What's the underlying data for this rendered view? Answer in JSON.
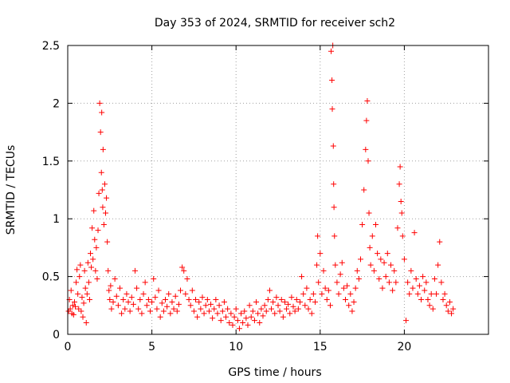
{
  "chart_data": {
    "type": "scatter",
    "title": "Day 353 of 2024, SRMTID for receiver sch2",
    "xlabel": "GPS time / hours",
    "ylabel": "SRMTID / TECUs",
    "xlim": [
      0,
      25
    ],
    "ylim": [
      0,
      2.5
    ],
    "xticks": [
      0,
      5,
      10,
      15,
      20
    ],
    "xtick_labels": [
      "0",
      "5",
      "10",
      "15",
      "20"
    ],
    "yticks": [
      0,
      0.5,
      1,
      1.5,
      2,
      2.5
    ],
    "ytick_labels": [
      "0",
      "0.5",
      "1",
      "1.5",
      "2",
      "2.5"
    ],
    "grid": true,
    "marker": "+",
    "color": "#ff0000",
    "series": [
      {
        "name": "SRMTID",
        "points": [
          [
            0.05,
            0.2
          ],
          [
            0.1,
            0.3
          ],
          [
            0.15,
            0.22
          ],
          [
            0.2,
            0.38
          ],
          [
            0.25,
            0.18
          ],
          [
            0.3,
            0.25
          ],
          [
            0.35,
            0.17
          ],
          [
            0.4,
            0.28
          ],
          [
            0.45,
            0.24
          ],
          [
            0.5,
            0.45
          ],
          [
            0.55,
            0.56
          ],
          [
            0.6,
            0.35
          ],
          [
            0.65,
            0.22
          ],
          [
            0.7,
            0.5
          ],
          [
            0.75,
            0.6
          ],
          [
            0.8,
            0.2
          ],
          [
            0.85,
            0.32
          ],
          [
            0.9,
            0.15
          ],
          [
            0.95,
            0.27
          ],
          [
            1.0,
            0.55
          ],
          [
            1.05,
            0.4
          ],
          [
            1.1,
            0.1
          ],
          [
            1.15,
            0.35
          ],
          [
            1.2,
            0.62
          ],
          [
            1.25,
            0.45
          ],
          [
            1.3,
            0.3
          ],
          [
            1.35,
            0.7
          ],
          [
            1.4,
            0.58
          ],
          [
            1.45,
            0.92
          ],
          [
            1.5,
            0.65
          ],
          [
            1.55,
            1.07
          ],
          [
            1.6,
            0.82
          ],
          [
            1.65,
            0.55
          ],
          [
            1.7,
            0.75
          ],
          [
            1.75,
            0.48
          ],
          [
            1.8,
            0.9
          ],
          [
            1.85,
            1.22
          ],
          [
            1.9,
            2.0
          ],
          [
            1.95,
            1.75
          ],
          [
            2.0,
            1.4
          ],
          [
            2.02,
            1.92
          ],
          [
            2.05,
            1.25
          ],
          [
            2.08,
            1.1
          ],
          [
            2.1,
            1.6
          ],
          [
            2.15,
            0.95
          ],
          [
            2.2,
            1.3
          ],
          [
            2.25,
            1.05
          ],
          [
            2.3,
            1.18
          ],
          [
            2.35,
            0.8
          ],
          [
            2.4,
            0.55
          ],
          [
            2.45,
            0.38
          ],
          [
            2.5,
            0.3
          ],
          [
            2.55,
            0.42
          ],
          [
            2.6,
            0.22
          ],
          [
            2.7,
            0.28
          ],
          [
            2.8,
            0.48
          ],
          [
            2.9,
            0.33
          ],
          [
            3.0,
            0.25
          ],
          [
            3.1,
            0.4
          ],
          [
            3.2,
            0.18
          ],
          [
            3.3,
            0.3
          ],
          [
            3.4,
            0.22
          ],
          [
            3.5,
            0.35
          ],
          [
            3.6,
            0.28
          ],
          [
            3.7,
            0.2
          ],
          [
            3.8,
            0.32
          ],
          [
            3.9,
            0.26
          ],
          [
            4.0,
            0.55
          ],
          [
            4.1,
            0.4
          ],
          [
            4.2,
            0.22
          ],
          [
            4.3,
            0.3
          ],
          [
            4.4,
            0.18
          ],
          [
            4.5,
            0.35
          ],
          [
            4.6,
            0.45
          ],
          [
            4.7,
            0.25
          ],
          [
            4.8,
            0.3
          ],
          [
            4.9,
            0.2
          ],
          [
            5.0,
            0.28
          ],
          [
            5.1,
            0.48
          ],
          [
            5.2,
            0.32
          ],
          [
            5.3,
            0.22
          ],
          [
            5.4,
            0.38
          ],
          [
            5.5,
            0.15
          ],
          [
            5.6,
            0.27
          ],
          [
            5.7,
            0.2
          ],
          [
            5.8,
            0.3
          ],
          [
            5.9,
            0.24
          ],
          [
            6.0,
            0.35
          ],
          [
            6.1,
            0.18
          ],
          [
            6.2,
            0.28
          ],
          [
            6.3,
            0.22
          ],
          [
            6.4,
            0.33
          ],
          [
            6.5,
            0.2
          ],
          [
            6.6,
            0.26
          ],
          [
            6.7,
            0.38
          ],
          [
            6.8,
            0.58
          ],
          [
            6.9,
            0.55
          ],
          [
            7.0,
            0.35
          ],
          [
            7.1,
            0.48
          ],
          [
            7.2,
            0.3
          ],
          [
            7.3,
            0.25
          ],
          [
            7.4,
            0.38
          ],
          [
            7.5,
            0.2
          ],
          [
            7.6,
            0.3
          ],
          [
            7.7,
            0.15
          ],
          [
            7.8,
            0.28
          ],
          [
            7.9,
            0.22
          ],
          [
            8.0,
            0.32
          ],
          [
            8.1,
            0.18
          ],
          [
            8.2,
            0.25
          ],
          [
            8.3,
            0.3
          ],
          [
            8.4,
            0.2
          ],
          [
            8.5,
            0.26
          ],
          [
            8.6,
            0.14
          ],
          [
            8.7,
            0.22
          ],
          [
            8.8,
            0.3
          ],
          [
            8.9,
            0.18
          ],
          [
            9.0,
            0.25
          ],
          [
            9.1,
            0.12
          ],
          [
            9.2,
            0.2
          ],
          [
            9.3,
            0.28
          ],
          [
            9.4,
            0.15
          ],
          [
            9.5,
            0.22
          ],
          [
            9.6,
            0.1
          ],
          [
            9.7,
            0.18
          ],
          [
            9.8,
            0.08
          ],
          [
            9.9,
            0.15
          ],
          [
            10.0,
            0.22
          ],
          [
            10.1,
            0.12
          ],
          [
            10.2,
            0.05
          ],
          [
            10.3,
            0.18
          ],
          [
            10.4,
            0.1
          ],
          [
            10.5,
            0.2
          ],
          [
            10.6,
            0.14
          ],
          [
            10.7,
            0.08
          ],
          [
            10.8,
            0.25
          ],
          [
            10.9,
            0.15
          ],
          [
            11.0,
            0.2
          ],
          [
            11.1,
            0.12
          ],
          [
            11.2,
            0.28
          ],
          [
            11.3,
            0.18
          ],
          [
            11.4,
            0.1
          ],
          [
            11.5,
            0.22
          ],
          [
            11.6,
            0.16
          ],
          [
            11.7,
            0.25
          ],
          [
            11.8,
            0.2
          ],
          [
            11.9,
            0.3
          ],
          [
            12.0,
            0.38
          ],
          [
            12.1,
            0.22
          ],
          [
            12.2,
            0.28
          ],
          [
            12.3,
            0.18
          ],
          [
            12.4,
            0.32
          ],
          [
            12.5,
            0.25
          ],
          [
            12.6,
            0.2
          ],
          [
            12.7,
            0.3
          ],
          [
            12.8,
            0.15
          ],
          [
            12.9,
            0.28
          ],
          [
            13.0,
            0.22
          ],
          [
            13.1,
            0.26
          ],
          [
            13.2,
            0.18
          ],
          [
            13.3,
            0.32
          ],
          [
            13.4,
            0.24
          ],
          [
            13.5,
            0.2
          ],
          [
            13.6,
            0.3
          ],
          [
            13.7,
            0.22
          ],
          [
            13.8,
            0.28
          ],
          [
            13.9,
            0.5
          ],
          [
            14.0,
            0.35
          ],
          [
            14.1,
            0.25
          ],
          [
            14.2,
            0.4
          ],
          [
            14.3,
            0.22
          ],
          [
            14.4,
            0.3
          ],
          [
            14.5,
            0.18
          ],
          [
            14.6,
            0.35
          ],
          [
            14.7,
            0.28
          ],
          [
            14.8,
            0.6
          ],
          [
            14.85,
            0.85
          ],
          [
            14.9,
            0.45
          ],
          [
            15.0,
            0.7
          ],
          [
            15.1,
            0.35
          ],
          [
            15.2,
            0.55
          ],
          [
            15.3,
            0.4
          ],
          [
            15.4,
            0.3
          ],
          [
            15.5,
            0.38
          ],
          [
            15.6,
            0.25
          ],
          [
            15.65,
            2.45
          ],
          [
            15.7,
            2.2
          ],
          [
            15.72,
            1.95
          ],
          [
            15.75,
            2.5
          ],
          [
            15.78,
            1.63
          ],
          [
            15.8,
            1.3
          ],
          [
            15.82,
            1.1
          ],
          [
            15.85,
            0.85
          ],
          [
            15.9,
            0.6
          ],
          [
            16.0,
            0.45
          ],
          [
            16.1,
            0.35
          ],
          [
            16.2,
            0.52
          ],
          [
            16.3,
            0.62
          ],
          [
            16.4,
            0.4
          ],
          [
            16.5,
            0.3
          ],
          [
            16.6,
            0.42
          ],
          [
            16.7,
            0.25
          ],
          [
            16.8,
            0.35
          ],
          [
            16.9,
            0.2
          ],
          [
            17.0,
            0.28
          ],
          [
            17.1,
            0.4
          ],
          [
            17.2,
            0.55
          ],
          [
            17.3,
            0.48
          ],
          [
            17.4,
            0.65
          ],
          [
            17.5,
            0.95
          ],
          [
            17.6,
            1.25
          ],
          [
            17.7,
            1.6
          ],
          [
            17.75,
            1.85
          ],
          [
            17.8,
            2.02
          ],
          [
            17.85,
            1.5
          ],
          [
            17.9,
            1.05
          ],
          [
            17.95,
            0.75
          ],
          [
            18.0,
            0.6
          ],
          [
            18.1,
            0.85
          ],
          [
            18.2,
            0.55
          ],
          [
            18.3,
            0.95
          ],
          [
            18.4,
            0.7
          ],
          [
            18.5,
            0.48
          ],
          [
            18.6,
            0.65
          ],
          [
            18.7,
            0.4
          ],
          [
            18.8,
            0.62
          ],
          [
            18.9,
            0.5
          ],
          [
            19.0,
            0.7
          ],
          [
            19.1,
            0.45
          ],
          [
            19.2,
            0.6
          ],
          [
            19.3,
            0.38
          ],
          [
            19.4,
            0.55
          ],
          [
            19.5,
            0.45
          ],
          [
            19.6,
            0.92
          ],
          [
            19.7,
            1.3
          ],
          [
            19.75,
            1.45
          ],
          [
            19.8,
            1.15
          ],
          [
            19.85,
            1.05
          ],
          [
            19.9,
            0.85
          ],
          [
            20.0,
            0.65
          ],
          [
            20.1,
            0.12
          ],
          [
            20.2,
            0.45
          ],
          [
            20.3,
            0.35
          ],
          [
            20.4,
            0.55
          ],
          [
            20.5,
            0.4
          ],
          [
            20.6,
            0.88
          ],
          [
            20.7,
            0.48
          ],
          [
            20.8,
            0.35
          ],
          [
            20.9,
            0.42
          ],
          [
            21.0,
            0.3
          ],
          [
            21.1,
            0.5
          ],
          [
            21.2,
            0.38
          ],
          [
            21.3,
            0.45
          ],
          [
            21.4,
            0.3
          ],
          [
            21.5,
            0.25
          ],
          [
            21.6,
            0.35
          ],
          [
            21.7,
            0.22
          ],
          [
            21.8,
            0.48
          ],
          [
            21.9,
            0.35
          ],
          [
            22.0,
            0.6
          ],
          [
            22.1,
            0.8
          ],
          [
            22.2,
            0.45
          ],
          [
            22.3,
            0.3
          ],
          [
            22.4,
            0.35
          ],
          [
            22.5,
            0.25
          ],
          [
            22.6,
            0.2
          ],
          [
            22.7,
            0.28
          ],
          [
            22.8,
            0.18
          ],
          [
            22.9,
            0.22
          ]
        ]
      }
    ]
  }
}
